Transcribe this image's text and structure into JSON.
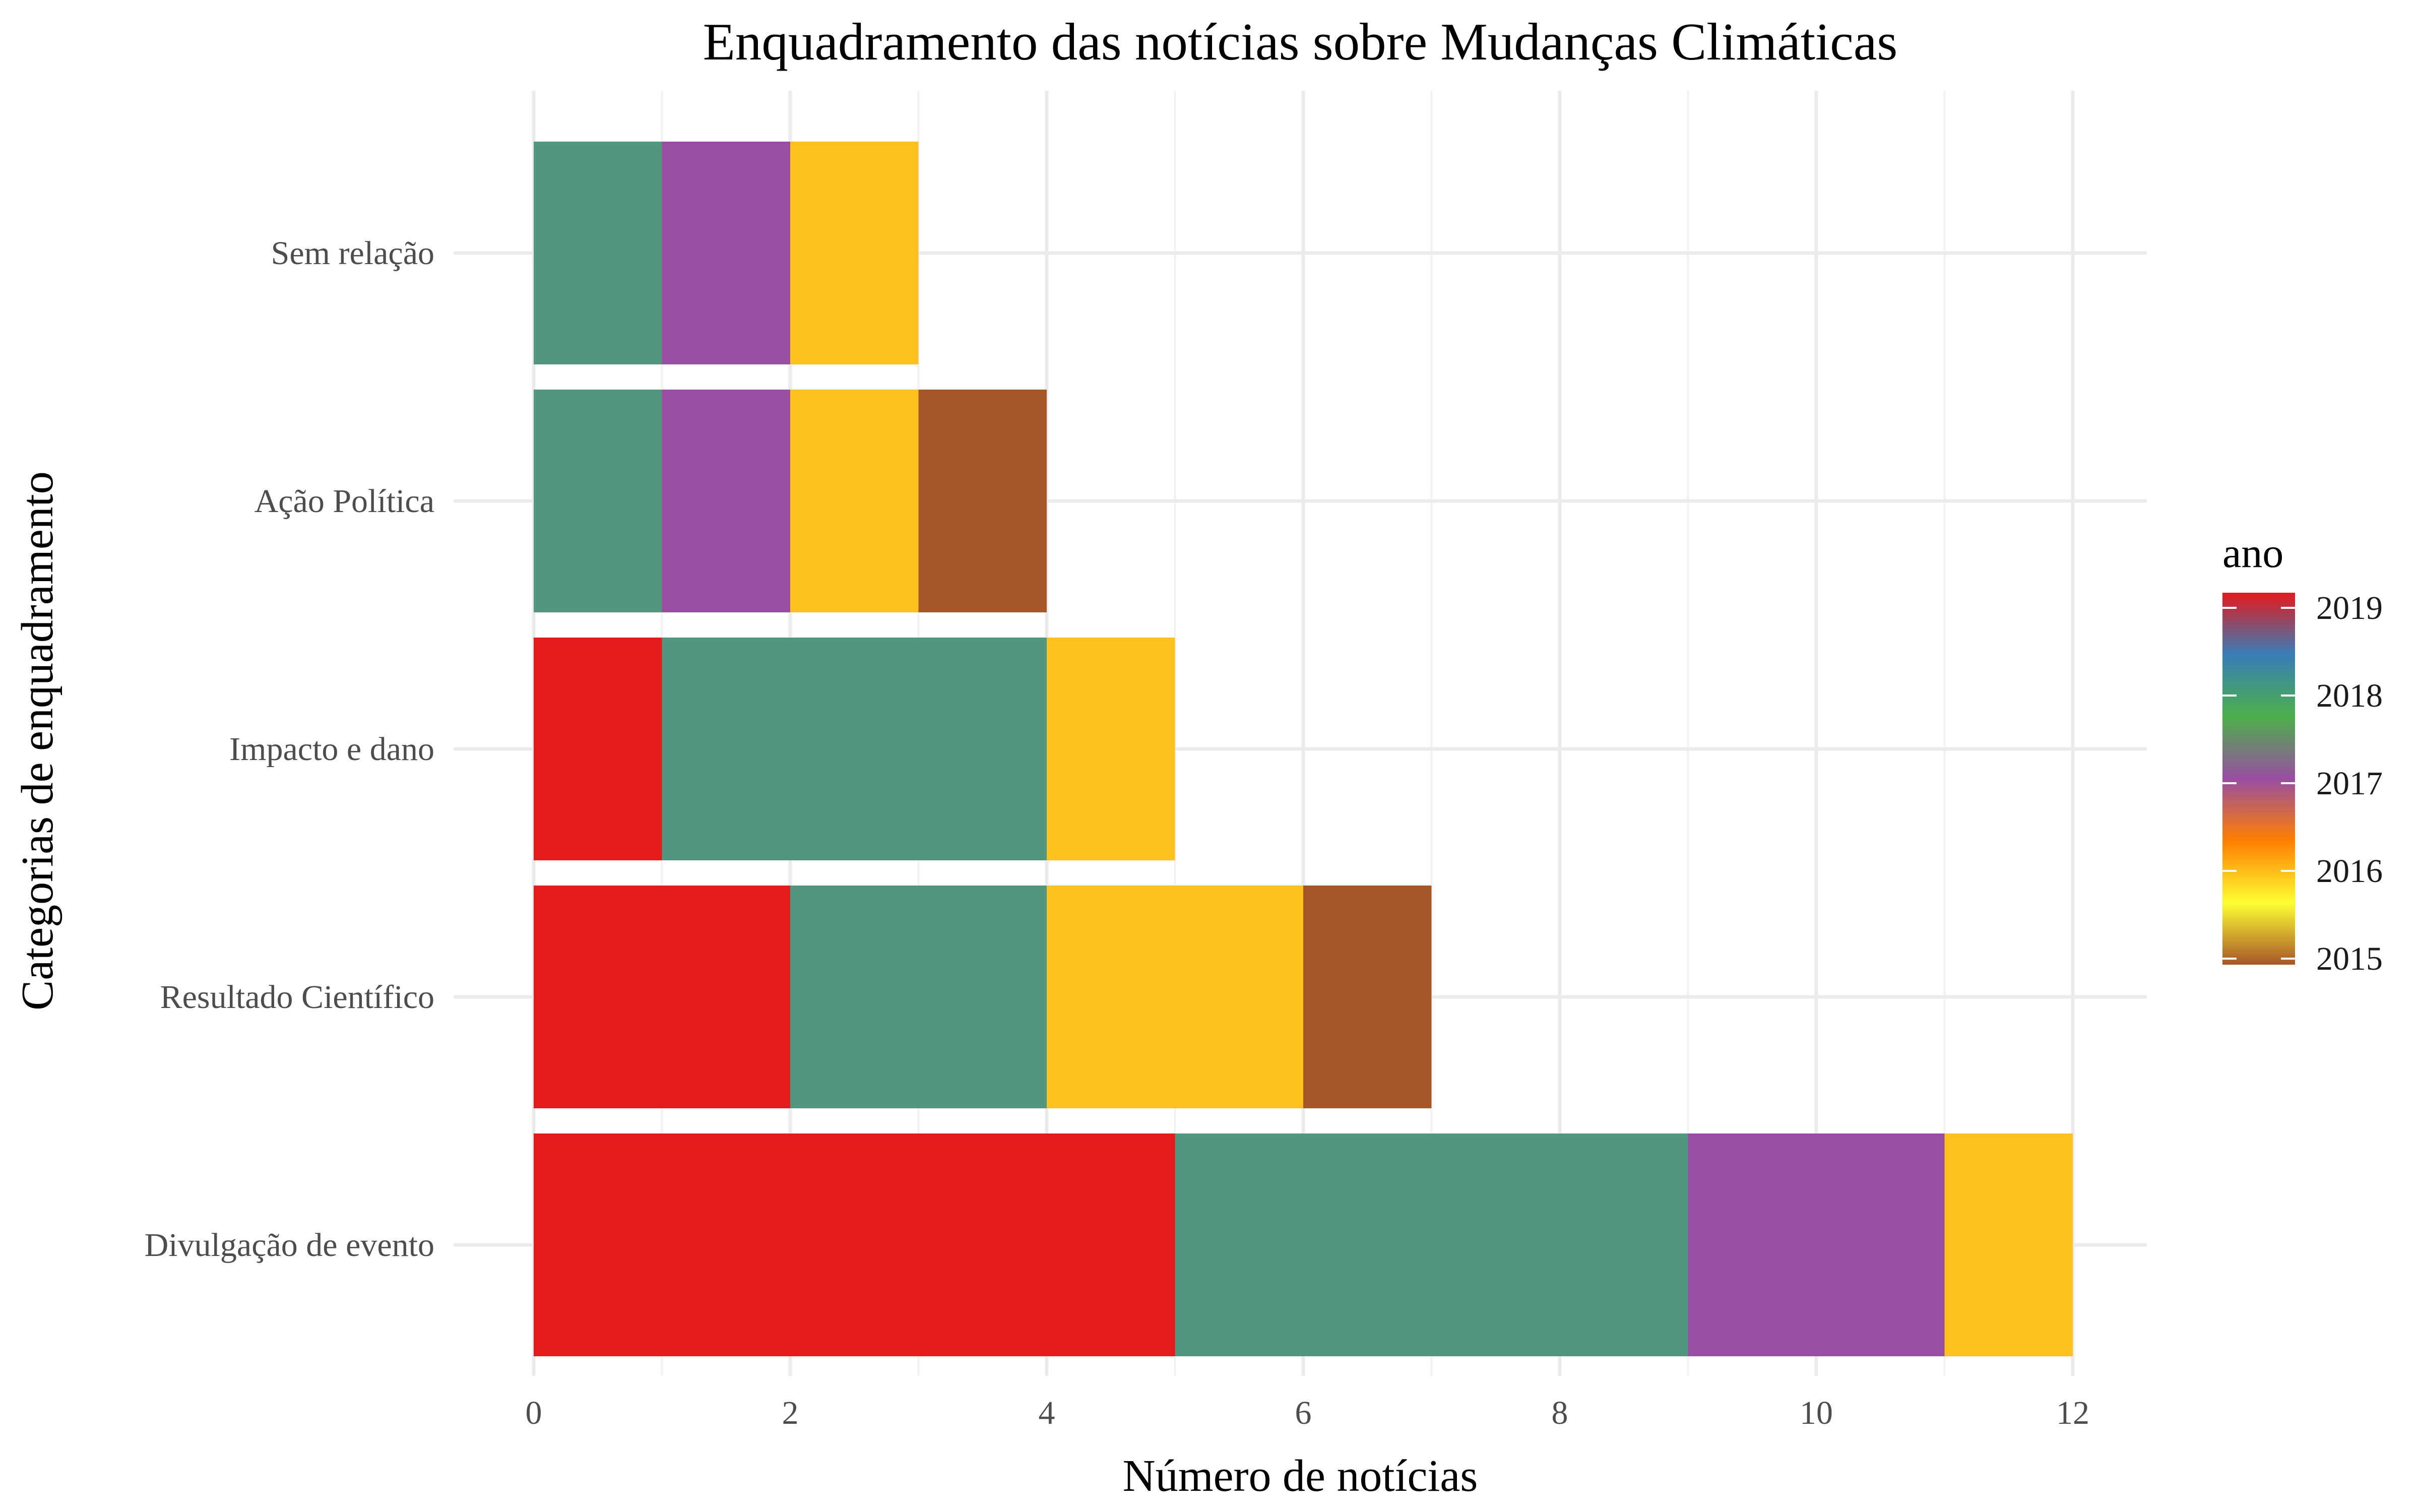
{
  "chart_data": {
    "type": "bar",
    "orientation": "horizontal",
    "stacked": true,
    "title": "Enquadramento das notícias sobre Mudanças Climáticas",
    "xlabel": "Número de notícias",
    "ylabel": "Categorias de enquadramento",
    "xlim": [
      0,
      12
    ],
    "xticks": [
      0,
      2,
      4,
      6,
      8,
      10,
      12
    ],
    "grid": true,
    "categories": [
      "Divulgação de evento",
      "Resultado Científico",
      "Impacto e dano",
      "Ação Política",
      "Sem relação"
    ],
    "legend": {
      "title": "ano",
      "placement": "right",
      "type": "colorbar",
      "labels": [
        "2019",
        "2018",
        "2017",
        "2016",
        "2015"
      ]
    },
    "series": [
      {
        "name": "2019",
        "color": "#e41a1c",
        "values": [
          5,
          2,
          1,
          0,
          0
        ]
      },
      {
        "name": "2018",
        "color": "#529680",
        "values": [
          4,
          2,
          3,
          1,
          1
        ]
      },
      {
        "name": "2017",
        "color": "#984ea3",
        "values": [
          2,
          0,
          0,
          1,
          1
        ]
      },
      {
        "name": "2016",
        "color": "#ffc11f",
        "values": [
          1,
          2,
          1,
          1,
          1
        ]
      },
      {
        "name": "2015",
        "color": "#a65628",
        "values": [
          0,
          1,
          0,
          1,
          0
        ]
      }
    ],
    "colorbar_stops": [
      "#e41a1c",
      "#377eb8",
      "#4daf4a",
      "#984ea3",
      "#ff7f00",
      "#ffff33",
      "#a65628"
    ]
  }
}
